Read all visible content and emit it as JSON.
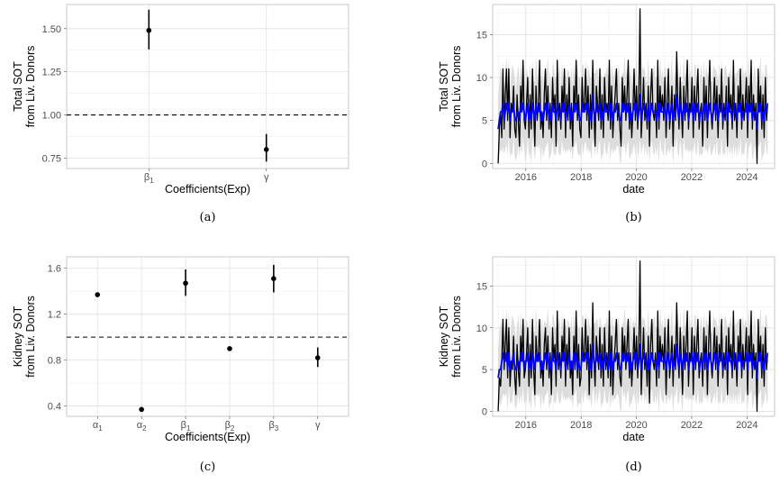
{
  "chart_data": [
    {
      "id": "a",
      "type": "scatter",
      "caption": "(a)",
      "xlabel": "Coefficients(Exp)",
      "ylabel": [
        "Total SOT",
        "from Liv. Donors"
      ],
      "categories": [
        "β1",
        "γ"
      ],
      "category_labels": [
        {
          "base": "β",
          "sub": "1"
        },
        {
          "base": "γ",
          "sub": ""
        }
      ],
      "values": [
        1.49,
        0.8
      ],
      "ci_low": [
        1.38,
        0.73
      ],
      "ci_high": [
        1.61,
        0.89
      ],
      "yticks": [
        "0.75",
        "1.00",
        "1.25",
        "1.50"
      ],
      "ylim": [
        0.69,
        1.64
      ],
      "hline": 1.0,
      "hline_style": "dashed",
      "grid": true
    },
    {
      "id": "b",
      "type": "line",
      "caption": "(b)",
      "xlabel": "date",
      "ylabel": [
        "Total SOT",
        "from Liv. Donors"
      ],
      "xticks": [
        "2016",
        "2018",
        "2020",
        "2022",
        "2024"
      ],
      "yticks": [
        "0",
        "5",
        "10",
        "15"
      ],
      "xlim": [
        2014.8,
        2025.0
      ],
      "ylim": [
        -0.6,
        18.5
      ],
      "x_range": [
        2015.0,
        2024.75
      ],
      "series": [
        {
          "role": "observed",
          "color": "#000000",
          "values": [
            0,
            4,
            6,
            3,
            11,
            4,
            8,
            11,
            5,
            11,
            3,
            7,
            6,
            9,
            4,
            3,
            8,
            5,
            2,
            9,
            6,
            12,
            5,
            4,
            7,
            10,
            3,
            8,
            4,
            11,
            6,
            2,
            9,
            5,
            7,
            12,
            4,
            6,
            3,
            8,
            11,
            5,
            9,
            4,
            7,
            3,
            10,
            6,
            8,
            2,
            12,
            5,
            7,
            4,
            9,
            6,
            11,
            3,
            8,
            5,
            10,
            4,
            7,
            2,
            9,
            6,
            12,
            5,
            8,
            4,
            3,
            10,
            6,
            7,
            11,
            5,
            9,
            3,
            8,
            4,
            12,
            6,
            2,
            9,
            7,
            5,
            11,
            4,
            8,
            3,
            10,
            6,
            7,
            5,
            12,
            4,
            9,
            3,
            6,
            8,
            11,
            5,
            7,
            4,
            2,
            10,
            6,
            9,
            5,
            8,
            12,
            4,
            7,
            3,
            6,
            11,
            5,
            9,
            4,
            8,
            18,
            3,
            6,
            10,
            5,
            7,
            4,
            9,
            2,
            8,
            11,
            6,
            5,
            7,
            3,
            12,
            4,
            9,
            6,
            8,
            5,
            10,
            3,
            7,
            11,
            4,
            6,
            9,
            2,
            8,
            5,
            13,
            7,
            4,
            10,
            6,
            3,
            9,
            5,
            8,
            12,
            4,
            7,
            6,
            10,
            3,
            9,
            5,
            8,
            11,
            4,
            6,
            7,
            2,
            10,
            5,
            9,
            3,
            8,
            12,
            6,
            4,
            7,
            10,
            5,
            9,
            3,
            8,
            6,
            11,
            4,
            7,
            5,
            9,
            2,
            10,
            6,
            8,
            4,
            12,
            5,
            7,
            3,
            9,
            6,
            11,
            4,
            8,
            5,
            7,
            10,
            3,
            9,
            6,
            12,
            4,
            8,
            5,
            7,
            0,
            11,
            6,
            9,
            4,
            8,
            3,
            10,
            5,
            7
          ]
        },
        {
          "role": "fitted",
          "color": "#0000ff",
          "values": [
            4,
            5,
            6,
            6,
            7,
            5,
            6,
            7,
            6,
            7,
            5,
            6,
            6,
            7,
            5,
            5,
            6,
            6,
            5,
            7,
            6,
            7,
            6,
            5,
            6,
            7,
            5,
            6,
            5,
            7,
            6,
            5,
            7,
            6,
            6,
            7,
            5,
            6,
            5,
            6,
            7,
            6,
            7,
            5,
            6,
            5,
            7,
            6,
            6,
            5,
            7,
            6,
            6,
            5,
            7,
            6,
            7,
            5,
            6,
            6,
            7,
            5,
            6,
            5,
            7,
            6,
            7,
            6,
            6,
            5,
            5,
            7,
            6,
            6,
            7,
            6,
            7,
            5,
            6,
            5,
            8,
            6,
            5,
            7,
            6,
            6,
            7,
            5,
            6,
            5,
            7,
            6,
            6,
            6,
            7,
            5,
            7,
            5,
            6,
            6,
            7,
            6,
            6,
            5,
            5,
            7,
            6,
            7,
            6,
            6,
            7,
            5,
            6,
            5,
            6,
            7,
            6,
            7,
            5,
            6,
            8,
            5,
            6,
            7,
            6,
            6,
            5,
            7,
            5,
            6,
            7,
            6,
            6,
            6,
            5,
            7,
            5,
            7,
            6,
            6,
            6,
            7,
            5,
            6,
            7,
            5,
            6,
            7,
            5,
            6,
            6,
            8,
            6,
            5,
            7,
            6,
            5,
            7,
            6,
            6,
            7,
            5,
            6,
            6,
            7,
            5,
            7,
            6,
            6,
            7,
            5,
            6,
            6,
            5,
            7,
            6,
            7,
            5,
            6,
            7,
            6,
            5,
            6,
            7,
            6,
            7,
            5,
            6,
            6,
            7,
            5,
            6,
            6,
            7,
            5,
            7,
            6,
            6,
            5,
            7,
            6,
            6,
            5,
            7,
            6,
            7,
            5,
            6,
            6,
            6,
            7,
            5,
            7,
            6,
            7,
            5,
            6,
            6,
            6,
            4,
            7,
            6,
            7,
            5,
            6,
            5,
            7,
            6,
            6
          ]
        },
        {
          "role": "interval",
          "color": "#d9d9d9",
          "lower_offset": -4.5,
          "upper_offset": 4.5
        }
      ],
      "grid": true
    },
    {
      "id": "c",
      "type": "scatter",
      "caption": "(c)",
      "xlabel": "Coefficients(Exp)",
      "ylabel": [
        "Kidney SOT",
        "from Liv. Donors"
      ],
      "categories": [
        "α1",
        "α2",
        "β1",
        "β2",
        "β3",
        "γ"
      ],
      "category_labels": [
        {
          "base": "α",
          "sub": "1"
        },
        {
          "base": "α",
          "sub": "2"
        },
        {
          "base": "β",
          "sub": "1"
        },
        {
          "base": "β",
          "sub": "2"
        },
        {
          "base": "β",
          "sub": "3"
        },
        {
          "base": "γ",
          "sub": ""
        }
      ],
      "values": [
        1.37,
        0.37,
        1.47,
        0.9,
        1.51,
        0.82
      ],
      "ci_low": [
        1.35,
        0.36,
        1.36,
        0.88,
        1.39,
        0.74
      ],
      "ci_high": [
        1.39,
        0.38,
        1.59,
        0.92,
        1.63,
        0.91
      ],
      "yticks": [
        "0.4",
        "0.8",
        "1.2",
        "1.6"
      ],
      "ylim": [
        0.31,
        1.7
      ],
      "hline": 1.0,
      "hline_style": "dashed",
      "grid": true
    },
    {
      "id": "d",
      "type": "line",
      "caption": "(d)",
      "xlabel": "date",
      "ylabel": [
        "Kidney SOT",
        "from Liv. Donors"
      ],
      "xticks": [
        "2016",
        "2018",
        "2020",
        "2022",
        "2024"
      ],
      "yticks": [
        "0",
        "5",
        "10",
        "15"
      ],
      "xlim": [
        2014.8,
        2025.0
      ],
      "ylim": [
        -0.6,
        18.5
      ],
      "x_range": [
        2015.0,
        2024.75
      ],
      "series": [
        {
          "role": "observed",
          "color": "#000000",
          "values": [
            0,
            4,
            3,
            6,
            11,
            5,
            8,
            11,
            4,
            10,
            3,
            6,
            5,
            9,
            4,
            2,
            8,
            5,
            3,
            9,
            6,
            11,
            4,
            5,
            7,
            10,
            3,
            8,
            4,
            11,
            5,
            2,
            9,
            6,
            7,
            11,
            4,
            6,
            3,
            8,
            10,
            5,
            9,
            4,
            7,
            2,
            10,
            6,
            8,
            3,
            12,
            5,
            7,
            4,
            9,
            6,
            11,
            3,
            8,
            5,
            10,
            4,
            6,
            2,
            9,
            5,
            12,
            4,
            8,
            3,
            4,
            10,
            6,
            7,
            11,
            5,
            9,
            2,
            8,
            4,
            13,
            6,
            3,
            9,
            7,
            5,
            10,
            4,
            8,
            3,
            10,
            5,
            7,
            4,
            12,
            3,
            9,
            2,
            6,
            8,
            11,
            5,
            7,
            4,
            3,
            10,
            6,
            9,
            5,
            8,
            11,
            4,
            7,
            3,
            6,
            10,
            5,
            9,
            4,
            8,
            18,
            2,
            6,
            10,
            5,
            7,
            3,
            9,
            1,
            8,
            11,
            6,
            5,
            7,
            3,
            12,
            4,
            9,
            6,
            8,
            5,
            10,
            2,
            7,
            11,
            4,
            6,
            9,
            3,
            8,
            5,
            13,
            7,
            4,
            10,
            6,
            2,
            9,
            5,
            8,
            12,
            3,
            7,
            6,
            10,
            2,
            9,
            5,
            8,
            11,
            4,
            6,
            7,
            3,
            10,
            5,
            9,
            2,
            8,
            12,
            6,
            4,
            7,
            10,
            5,
            9,
            3,
            8,
            6,
            11,
            4,
            7,
            5,
            9,
            2,
            10,
            6,
            8,
            4,
            12,
            5,
            7,
            3,
            9,
            6,
            11,
            4,
            8,
            5,
            7,
            10,
            2,
            9,
            6,
            12,
            4,
            8,
            5,
            7,
            0,
            11,
            6,
            9,
            4,
            8,
            3,
            10,
            5,
            7
          ]
        },
        {
          "role": "fitted",
          "color": "#0000ff",
          "values": [
            4,
            5,
            5,
            6,
            7,
            6,
            6,
            7,
            5,
            7,
            5,
            6,
            6,
            7,
            5,
            5,
            6,
            6,
            5,
            7,
            6,
            7,
            5,
            6,
            6,
            7,
            5,
            6,
            5,
            7,
            6,
            5,
            7,
            6,
            6,
            7,
            5,
            6,
            5,
            6,
            7,
            6,
            7,
            5,
            6,
            5,
            7,
            6,
            6,
            5,
            7,
            6,
            6,
            5,
            7,
            6,
            7,
            5,
            6,
            6,
            7,
            5,
            6,
            5,
            7,
            6,
            7,
            5,
            6,
            5,
            5,
            7,
            6,
            6,
            7,
            6,
            7,
            5,
            6,
            5,
            8,
            6,
            5,
            7,
            6,
            6,
            7,
            5,
            6,
            5,
            7,
            6,
            6,
            5,
            7,
            5,
            7,
            5,
            6,
            6,
            7,
            6,
            6,
            5,
            5,
            7,
            6,
            7,
            6,
            6,
            7,
            5,
            6,
            5,
            6,
            7,
            6,
            7,
            5,
            6,
            8,
            5,
            6,
            7,
            6,
            6,
            5,
            7,
            5,
            6,
            7,
            6,
            6,
            6,
            5,
            7,
            5,
            7,
            6,
            6,
            6,
            7,
            5,
            6,
            7,
            5,
            6,
            7,
            5,
            6,
            6,
            8,
            6,
            5,
            7,
            6,
            5,
            7,
            6,
            6,
            7,
            5,
            6,
            6,
            7,
            5,
            7,
            6,
            6,
            7,
            5,
            6,
            6,
            5,
            7,
            6,
            7,
            5,
            6,
            7,
            6,
            5,
            6,
            7,
            6,
            7,
            5,
            6,
            6,
            7,
            5,
            6,
            6,
            7,
            5,
            7,
            6,
            6,
            5,
            7,
            6,
            6,
            5,
            7,
            6,
            7,
            5,
            6,
            6,
            6,
            7,
            5,
            7,
            6,
            7,
            5,
            6,
            6,
            6,
            4,
            7,
            6,
            7,
            5,
            6,
            5,
            7,
            6,
            6
          ]
        },
        {
          "role": "interval",
          "color": "#d9d9d9",
          "lower_offset": -4.5,
          "upper_offset": 4.5
        }
      ],
      "grid": true
    }
  ]
}
